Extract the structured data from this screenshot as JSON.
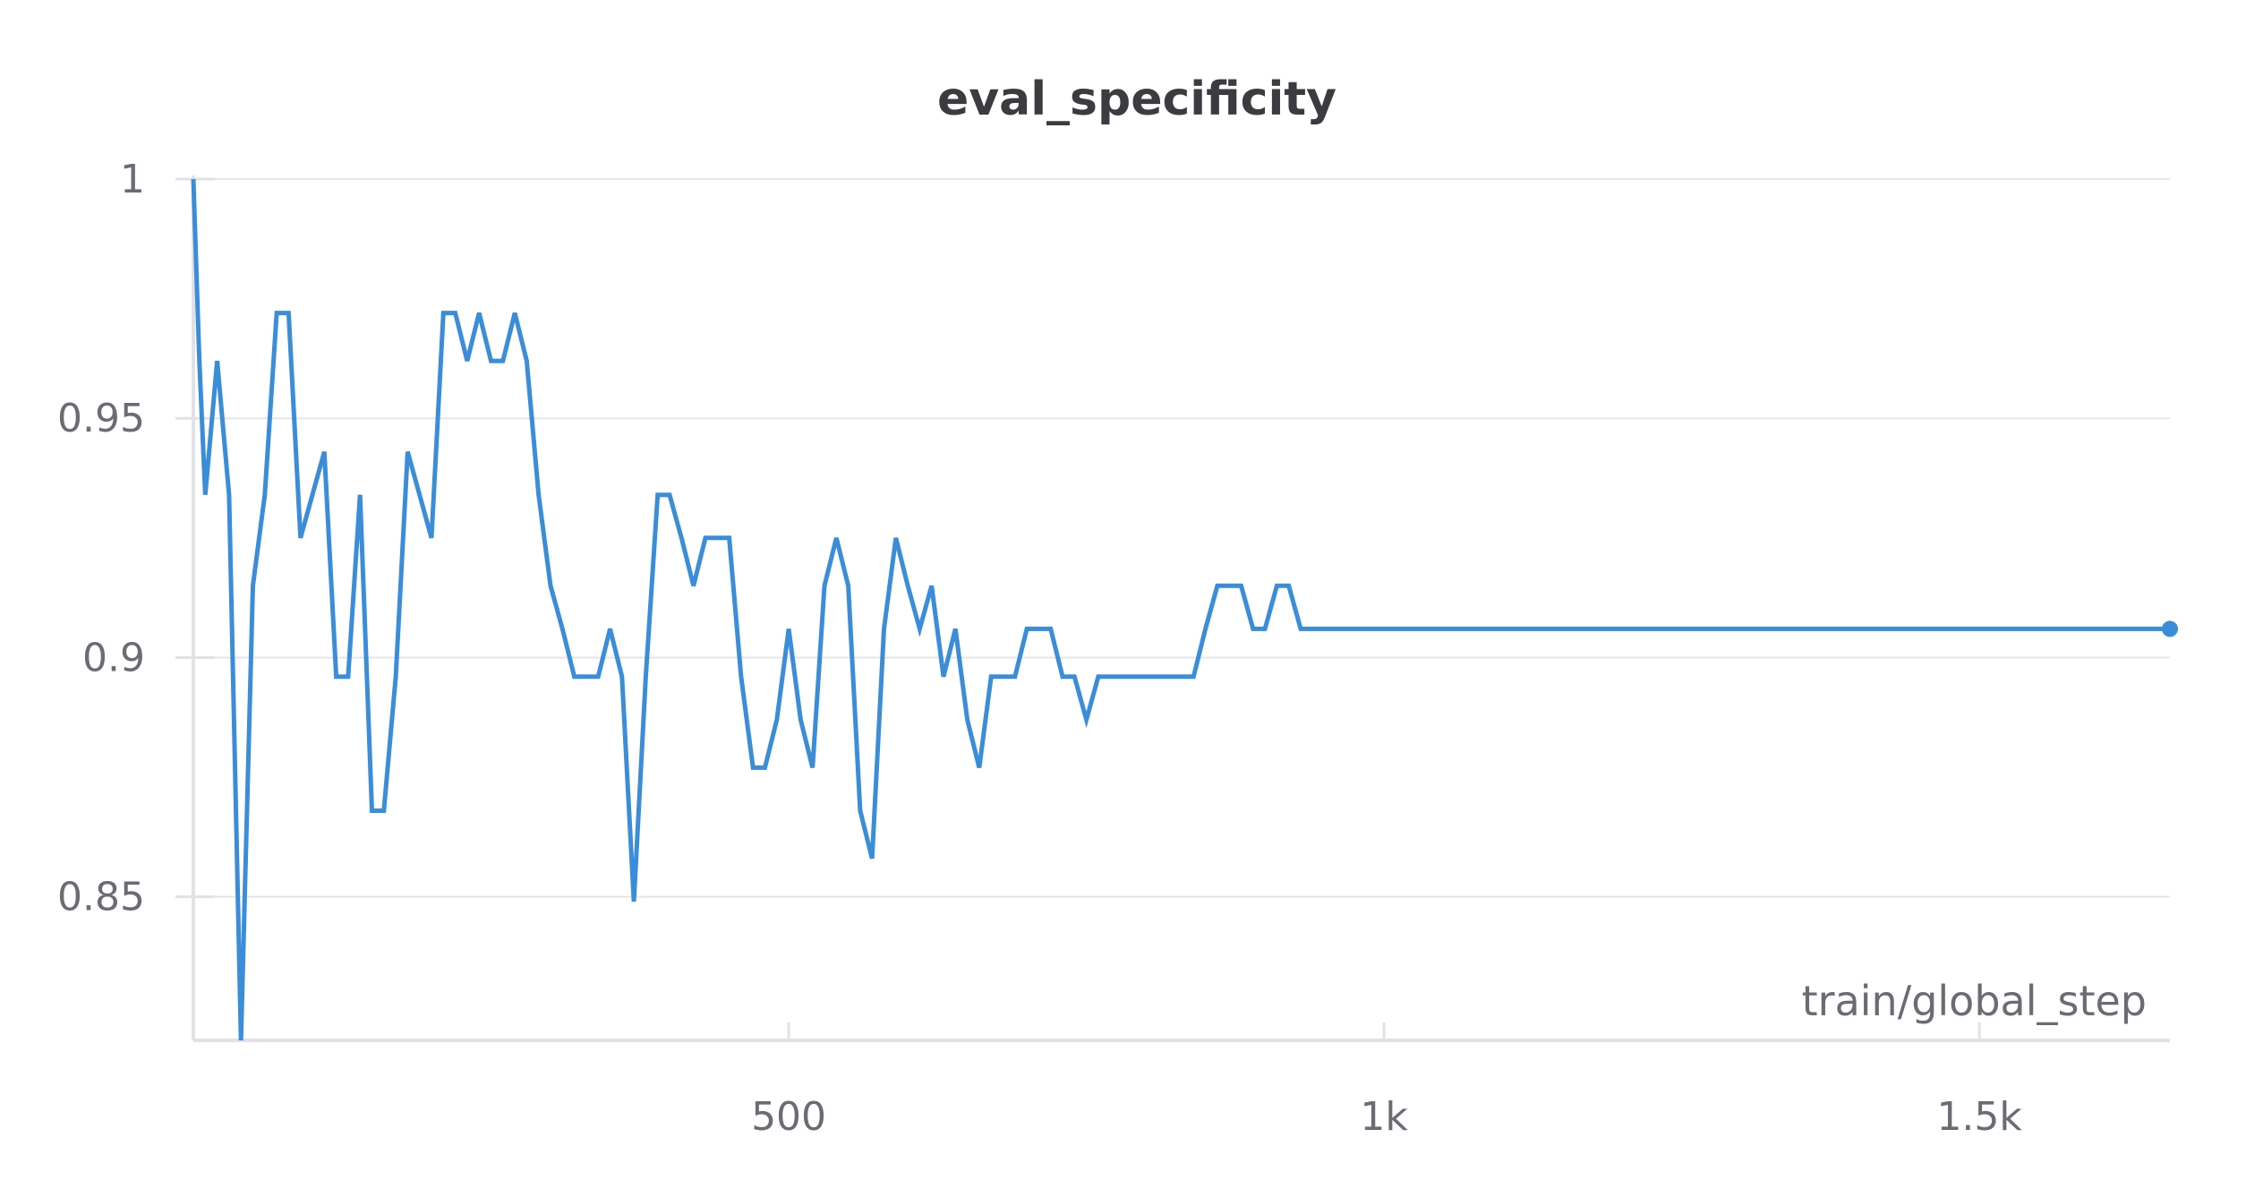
{
  "chart_data": {
    "type": "line",
    "title": "eval_specificity",
    "xlabel": "train/global_step",
    "ylabel": "",
    "xlim": [
      0,
      1660
    ],
    "ylim": [
      0.82,
      1.0
    ],
    "x_ticks": [
      500,
      1000,
      1500
    ],
    "x_tick_labels": [
      "500",
      "1k",
      "1.5k"
    ],
    "y_ticks": [
      0.85,
      0.9,
      0.95,
      1.0
    ],
    "y_tick_labels": [
      "0.85",
      "0.9",
      "0.95",
      "1"
    ],
    "grid": true,
    "legend": "none",
    "color": "#3a8dd8",
    "series": [
      {
        "x": [
          0,
          5,
          10,
          20,
          30,
          40,
          50,
          60,
          70,
          80,
          90,
          100,
          110,
          120,
          130,
          140,
          150,
          160,
          170,
          180,
          190,
          200,
          210,
          220,
          230,
          240,
          250,
          260,
          270,
          280,
          290,
          300,
          310,
          320,
          330,
          340,
          350,
          360,
          370,
          380,
          390,
          400,
          410,
          420,
          430,
          440,
          450,
          460,
          470,
          480,
          490,
          500,
          510,
          520,
          530,
          540,
          550,
          560,
          570,
          580,
          590,
          600,
          610,
          620,
          630,
          640,
          650,
          660,
          670,
          680,
          690,
          700,
          710,
          720,
          730,
          740,
          750,
          760,
          770,
          780,
          790,
          800,
          810,
          820,
          830,
          840,
          850,
          860,
          870,
          880,
          890,
          900,
          910,
          920,
          930,
          940,
          1660
        ],
        "y": [
          1.0,
          0.962,
          0.934,
          0.962,
          0.934,
          0.82,
          0.915,
          0.934,
          0.972,
          0.972,
          0.925,
          0.934,
          0.943,
          0.896,
          0.896,
          0.934,
          0.868,
          0.868,
          0.896,
          0.943,
          0.934,
          0.925,
          0.972,
          0.972,
          0.962,
          0.972,
          0.962,
          0.962,
          0.972,
          0.962,
          0.934,
          0.915,
          0.906,
          0.896,
          0.896,
          0.896,
          0.906,
          0.896,
          0.849,
          0.896,
          0.934,
          0.934,
          0.925,
          0.915,
          0.925,
          0.925,
          0.925,
          0.896,
          0.877,
          0.877,
          0.887,
          0.906,
          0.887,
          0.877,
          0.915,
          0.925,
          0.915,
          0.868,
          0.858,
          0.906,
          0.925,
          0.915,
          0.906,
          0.915,
          0.896,
          0.906,
          0.887,
          0.877,
          0.896,
          0.896,
          0.896,
          0.906,
          0.906,
          0.906,
          0.896,
          0.896,
          0.887,
          0.896,
          0.896,
          0.896,
          0.896,
          0.896,
          0.896,
          0.896,
          0.896,
          0.896,
          0.906,
          0.915,
          0.915,
          0.915,
          0.906,
          0.906,
          0.915,
          0.915,
          0.906,
          0.906,
          0.906
        ]
      }
    ]
  }
}
